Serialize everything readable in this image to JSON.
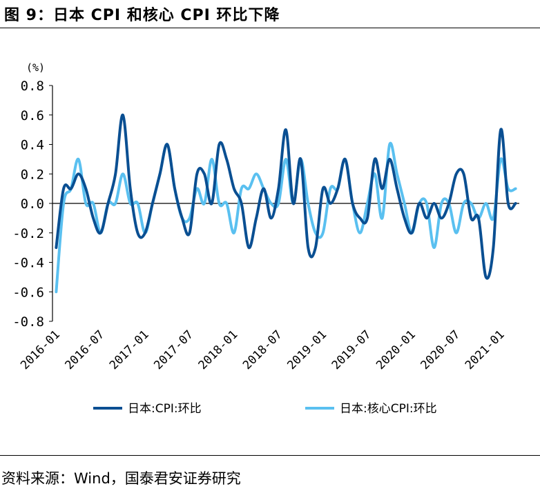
{
  "title": "图 9：日本 CPI 和核心 CPI 环比下降",
  "source": "资料来源：Wind，国泰君安证券研究",
  "chart_data": {
    "type": "line",
    "unit_label": "(%)",
    "ylim": [
      -0.8,
      0.8
    ],
    "yticks": [
      "0.8",
      "0.6",
      "0.4",
      "0.2",
      "0.0",
      "-0.2",
      "-0.4",
      "-0.6",
      "-0.8"
    ],
    "ytick_values": [
      0.8,
      0.6,
      0.4,
      0.2,
      0.0,
      -0.2,
      -0.4,
      -0.6,
      -0.8
    ],
    "xticks": [
      "2016-01",
      "2016-07",
      "2017-01",
      "2017-07",
      "2018-01",
      "2018-07",
      "2019-01",
      "2019-07",
      "2020-01",
      "2020-07",
      "2021-01"
    ],
    "x": [
      "2016-01",
      "2016-02",
      "2016-03",
      "2016-04",
      "2016-05",
      "2016-06",
      "2016-07",
      "2016-08",
      "2016-09",
      "2016-10",
      "2016-11",
      "2016-12",
      "2017-01",
      "2017-02",
      "2017-03",
      "2017-04",
      "2017-05",
      "2017-06",
      "2017-07",
      "2017-08",
      "2017-09",
      "2017-10",
      "2017-11",
      "2017-12",
      "2018-01",
      "2018-02",
      "2018-03",
      "2018-04",
      "2018-05",
      "2018-06",
      "2018-07",
      "2018-08",
      "2018-09",
      "2018-10",
      "2018-11",
      "2018-12",
      "2019-01",
      "2019-02",
      "2019-03",
      "2019-04",
      "2019-05",
      "2019-06",
      "2019-07",
      "2019-08",
      "2019-09",
      "2019-10",
      "2019-11",
      "2019-12",
      "2020-01",
      "2020-02",
      "2020-03",
      "2020-04",
      "2020-05",
      "2020-06",
      "2020-07",
      "2020-08",
      "2020-09",
      "2020-10",
      "2020-11",
      "2020-12",
      "2021-01",
      "2021-02",
      "2021-03"
    ],
    "series": [
      {
        "name": "日本:CPI:环比",
        "color": "#0a4f92",
        "values": [
          -0.3,
          0.1,
          0.1,
          0.2,
          0.1,
          -0.1,
          -0.2,
          0.0,
          0.2,
          0.6,
          0.1,
          -0.2,
          -0.2,
          0.0,
          0.2,
          0.4,
          0.1,
          -0.1,
          -0.2,
          0.2,
          0.2,
          0.0,
          0.4,
          0.3,
          0.1,
          0.0,
          -0.3,
          -0.1,
          0.1,
          -0.1,
          0.1,
          0.5,
          0.0,
          0.3,
          -0.3,
          -0.3,
          0.1,
          0.0,
          0.1,
          0.3,
          0.0,
          -0.1,
          -0.1,
          0.3,
          0.1,
          0.3,
          0.1,
          -0.1,
          -0.2,
          0.0,
          -0.1,
          0.0,
          -0.1,
          0.0,
          0.2,
          0.2,
          -0.1,
          -0.1,
          -0.5,
          -0.3,
          0.5,
          0.0,
          0.0
        ]
      },
      {
        "name": "日本:核心CPI:环比",
        "color": "#5ac0f0",
        "values": [
          -0.6,
          0.0,
          0.1,
          0.3,
          0.0,
          0.0,
          -0.2,
          0.0,
          0.0,
          0.2,
          0.0,
          0.0,
          -0.2,
          0.0,
          0.2,
          0.4,
          0.1,
          -0.1,
          -0.1,
          0.1,
          0.0,
          0.3,
          0.0,
          0.0,
          -0.2,
          0.1,
          0.1,
          0.2,
          0.1,
          0.0,
          0.0,
          0.3,
          0.0,
          0.3,
          0.0,
          -0.2,
          -0.2,
          0.1,
          0.1,
          0.3,
          0.0,
          -0.2,
          0.0,
          0.2,
          -0.1,
          0.4,
          0.2,
          0.0,
          -0.2,
          0.0,
          0.0,
          -0.3,
          0.0,
          0.0,
          -0.2,
          0.0,
          0.0,
          -0.1,
          0.0,
          -0.1,
          0.3,
          0.1,
          0.1
        ]
      }
    ],
    "legend_position": "bottom",
    "grid": false
  }
}
